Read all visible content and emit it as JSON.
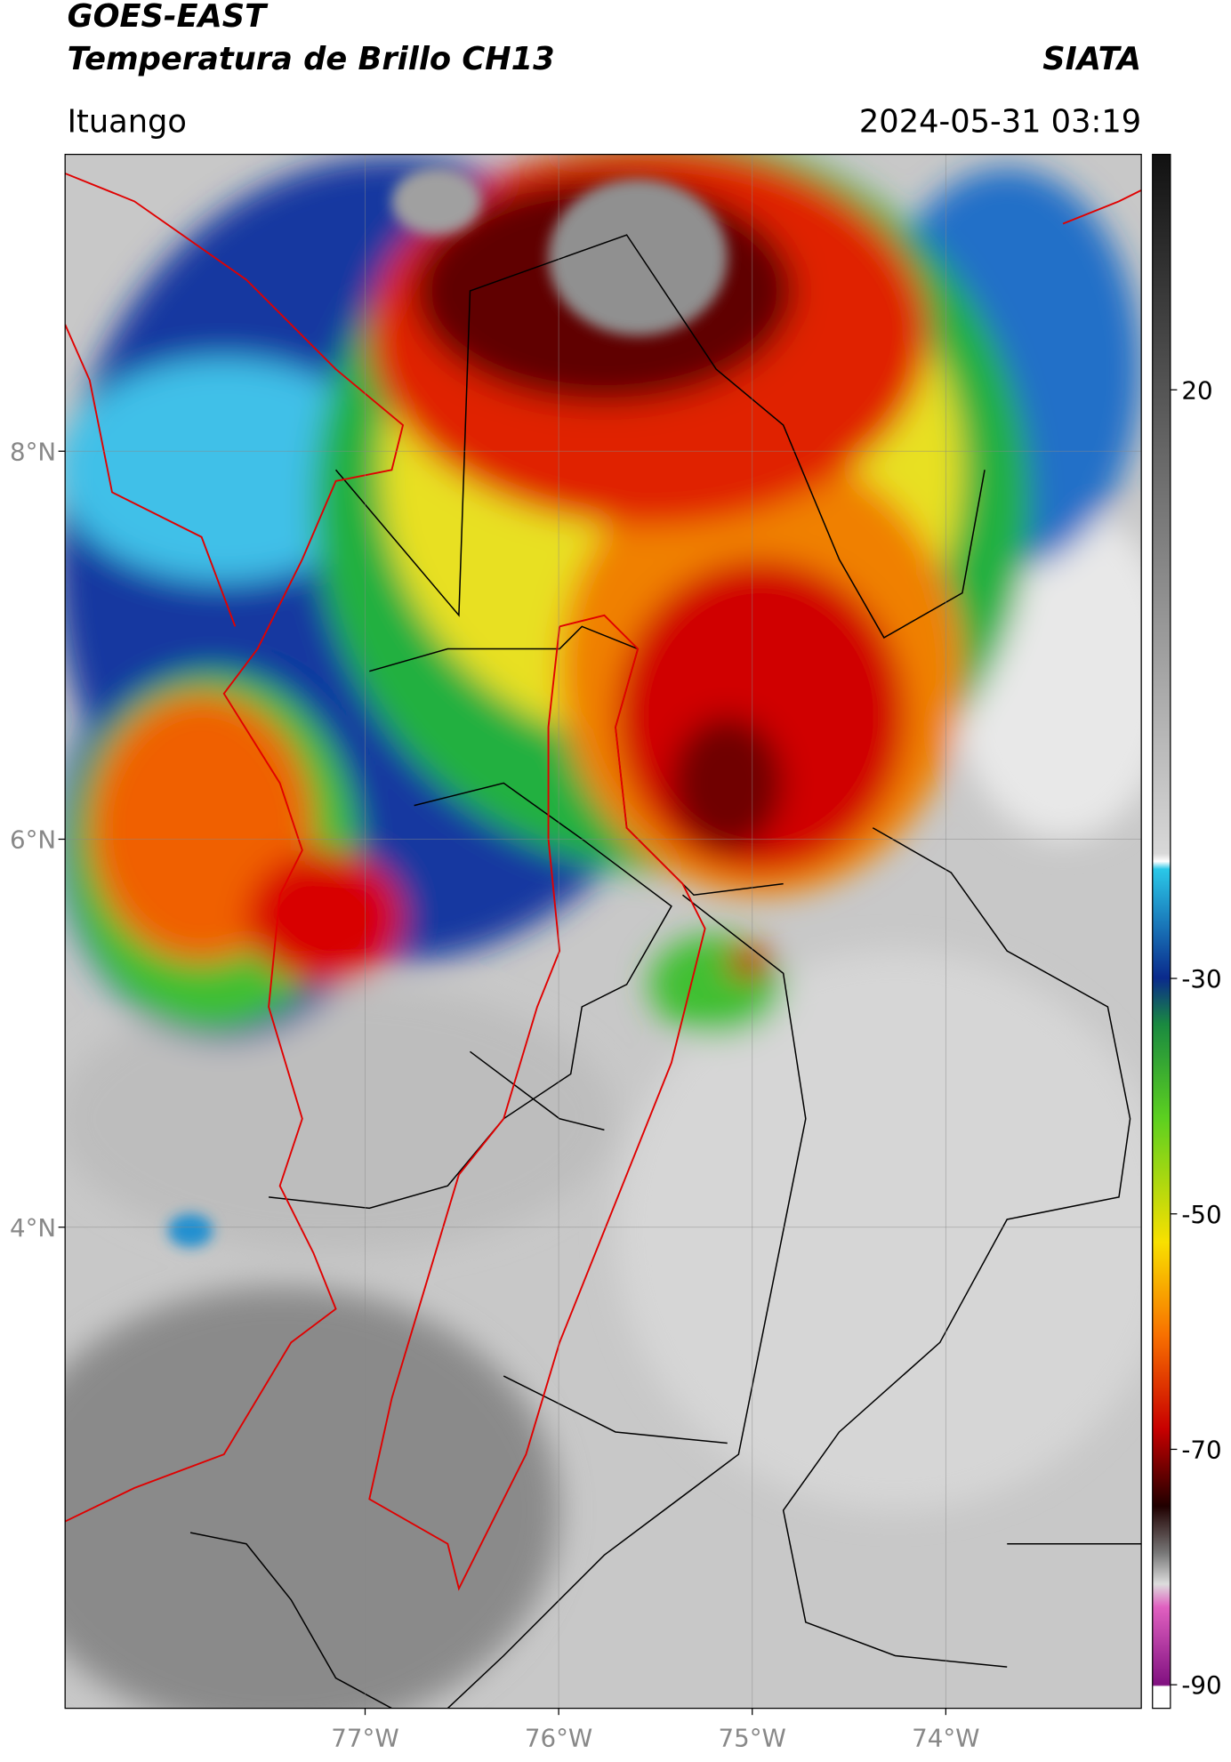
{
  "header": {
    "title": "GOES-EAST",
    "subtitle": "Temperatura de Brillo CH13",
    "brand": "SIATA",
    "location": "Ituango",
    "timestamp": "2024-05-31 03:19"
  },
  "map": {
    "lat_range": [
      1.52,
      9.53
    ],
    "lon_range": [
      -78.55,
      -72.99
    ],
    "lat_ticks": [
      {
        "value": 8,
        "label": "8°N"
      },
      {
        "value": 6,
        "label": "6°N"
      },
      {
        "value": 4,
        "label": "4°N"
      }
    ],
    "lon_ticks": [
      {
        "value": -77,
        "label": "77°W"
      },
      {
        "value": -76,
        "label": "76°W"
      },
      {
        "value": -75,
        "label": "75°W"
      },
      {
        "value": -74,
        "label": "74°W"
      }
    ],
    "grid": true
  },
  "colorbar": {
    "range": [
      -92,
      40
    ],
    "ticks": [
      20,
      -30,
      -50,
      -70,
      -90
    ]
  }
}
